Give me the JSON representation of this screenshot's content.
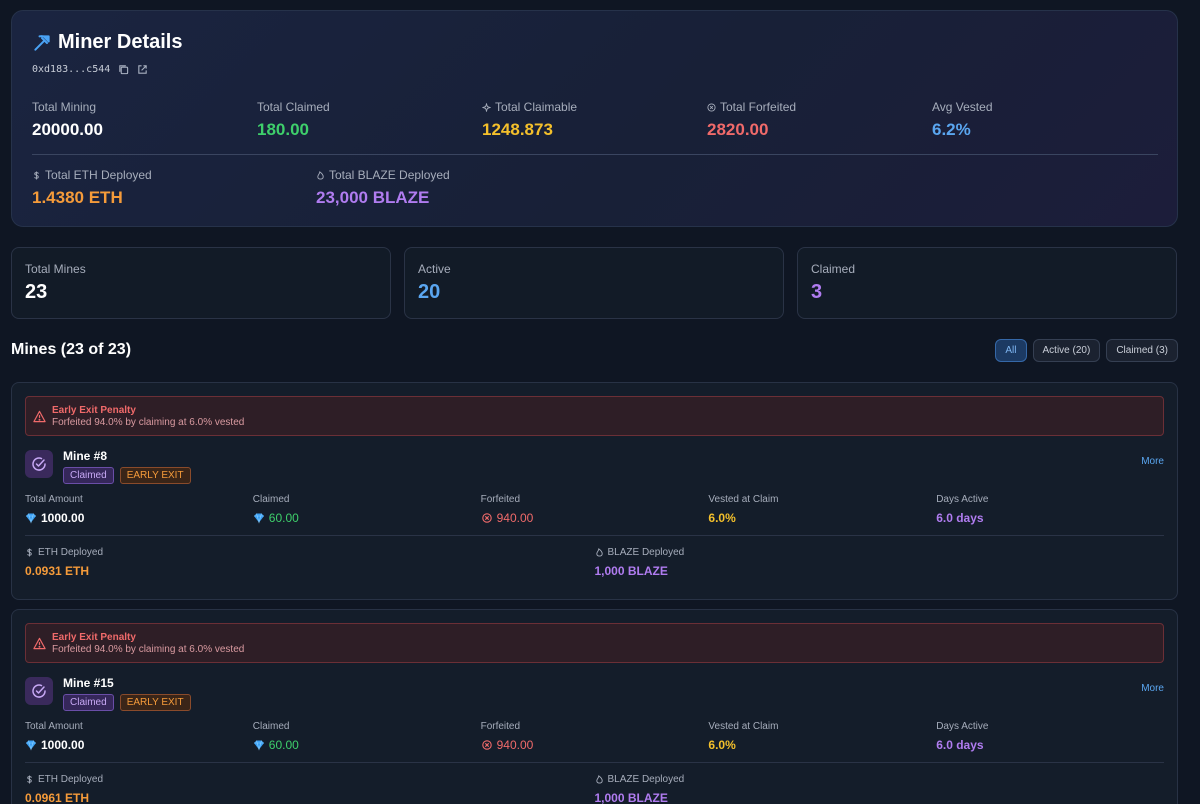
{
  "header": {
    "title": "Miner Details",
    "address": "0xd183...c544",
    "icons": [
      "pickaxe-icon",
      "copy-icon",
      "external-link-icon"
    ]
  },
  "stats": [
    {
      "label": "Total Mining",
      "value": "20000.00",
      "color": "#ffffff"
    },
    {
      "label": "Total Claimed",
      "value": "180.00",
      "color": "#3ecf6b"
    },
    {
      "label": "Total Claimable",
      "value": "1248.873",
      "color": "#f4c02b",
      "icon": "sparkle-icon"
    },
    {
      "label": "Total Forfeited",
      "value": "2820.00",
      "color": "#f06a6a",
      "icon": "x-circle-icon"
    },
    {
      "label": "Avg Vested",
      "value": "6.2%",
      "color": "#5aa6f0"
    }
  ],
  "deployed": [
    {
      "label": "Total ETH Deployed",
      "value": "1.4380 ETH",
      "color": "#f59b3a",
      "icon": "dollar-icon"
    },
    {
      "label": "Total BLAZE Deployed",
      "value": "23,000 BLAZE",
      "color": "#b07cf0",
      "icon": "flame-icon"
    }
  ],
  "summary": [
    {
      "label": "Total Mines",
      "value": "23",
      "color": "#ffffff"
    },
    {
      "label": "Active",
      "value": "20",
      "color": "#5aa6f0"
    },
    {
      "label": "Claimed",
      "value": "3",
      "color": "#b07cf0"
    }
  ],
  "mines_section": {
    "title": "Mines (23 of 23)",
    "filters": [
      {
        "label": "All",
        "active": true
      },
      {
        "label": "Active (20)",
        "active": false
      },
      {
        "label": "Claimed (3)",
        "active": false
      }
    ]
  },
  "mines": [
    {
      "penalty_title": "Early Exit Penalty",
      "penalty_text": "Forfeited 94.0% by claiming at 6.0% vested",
      "name": "Mine #8",
      "badges": [
        "Claimed",
        "EARLY EXIT"
      ],
      "more": "More",
      "labels": [
        "Total Amount",
        "Claimed",
        "Forfeited",
        "Vested at Claim",
        "Days Active"
      ],
      "total_amount": "1000.00",
      "claimed": "60.00",
      "forfeited": "940.00",
      "vested": "6.0%",
      "days": "6.0 days",
      "eth_label": "ETH Deployed",
      "eth": "0.0931 ETH",
      "blaze_label": "BLAZE Deployed",
      "blaze": "1,000 BLAZE"
    },
    {
      "penalty_title": "Early Exit Penalty",
      "penalty_text": "Forfeited 94.0% by claiming at 6.0% vested",
      "name": "Mine #15",
      "badges": [
        "Claimed",
        "EARLY EXIT"
      ],
      "more": "More",
      "labels": [
        "Total Amount",
        "Claimed",
        "Forfeited",
        "Vested at Claim",
        "Days Active"
      ],
      "total_amount": "1000.00",
      "claimed": "60.00",
      "forfeited": "940.00",
      "vested": "6.0%",
      "days": "6.0 days",
      "eth_label": "ETH Deployed",
      "eth": "0.0961 ETH",
      "blaze_label": "BLAZE Deployed",
      "blaze": "1,000 BLAZE"
    }
  ]
}
